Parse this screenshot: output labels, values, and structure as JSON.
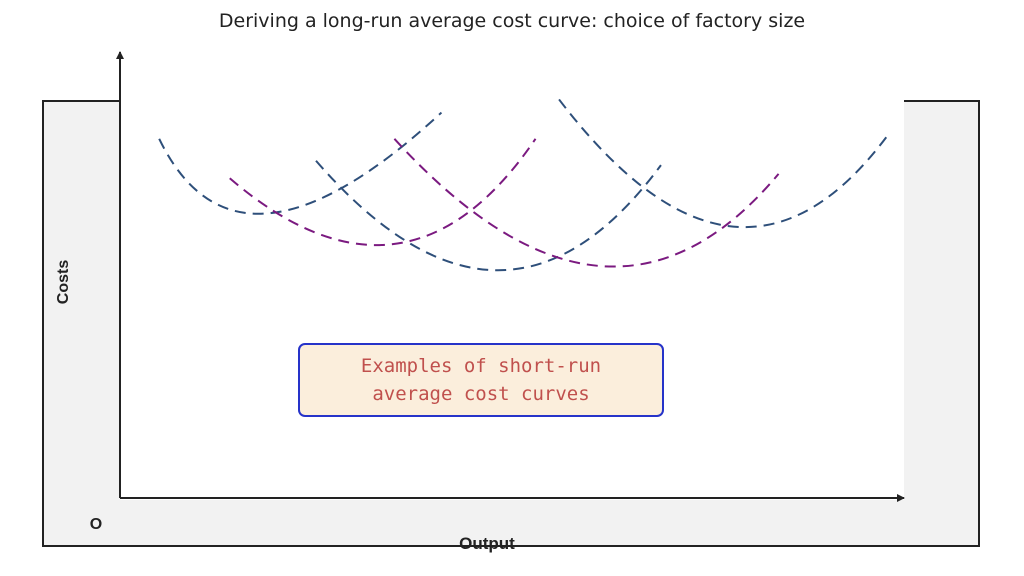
{
  "title": "Deriving a long-run average cost curve: choice of factory size",
  "axes": {
    "y_label": "Costs",
    "x_label": "Output",
    "origin_label": "O"
  },
  "callout": {
    "text": "Examples of short-run\naverage cost curves"
  },
  "colors": {
    "curve_blue": "#2e4f7a",
    "curve_purple": "#7b1a80",
    "axis": "#222222",
    "callout_border": "#2633c9",
    "callout_fill": "#fbeedc",
    "callout_text": "#c0504d"
  },
  "chart_data": {
    "type": "line",
    "note_style": "dashed",
    "series": [
      {
        "color": "blue",
        "x": [
          0.05,
          0.19,
          0.41
        ],
        "y": [
          0.82,
          0.65,
          0.88
        ]
      },
      {
        "color": "purple",
        "x": [
          0.14,
          0.35,
          0.53
        ],
        "y": [
          0.73,
          0.58,
          0.82
        ]
      },
      {
        "color": "blue",
        "x": [
          0.25,
          0.48,
          0.69
        ],
        "y": [
          0.77,
          0.52,
          0.76
        ]
      },
      {
        "color": "purple",
        "x": [
          0.35,
          0.61,
          0.84
        ],
        "y": [
          0.82,
          0.53,
          0.74
        ]
      },
      {
        "color": "blue",
        "x": [
          0.56,
          0.78,
          0.98
        ],
        "y": [
          0.91,
          0.62,
          0.83
        ]
      }
    ]
  }
}
